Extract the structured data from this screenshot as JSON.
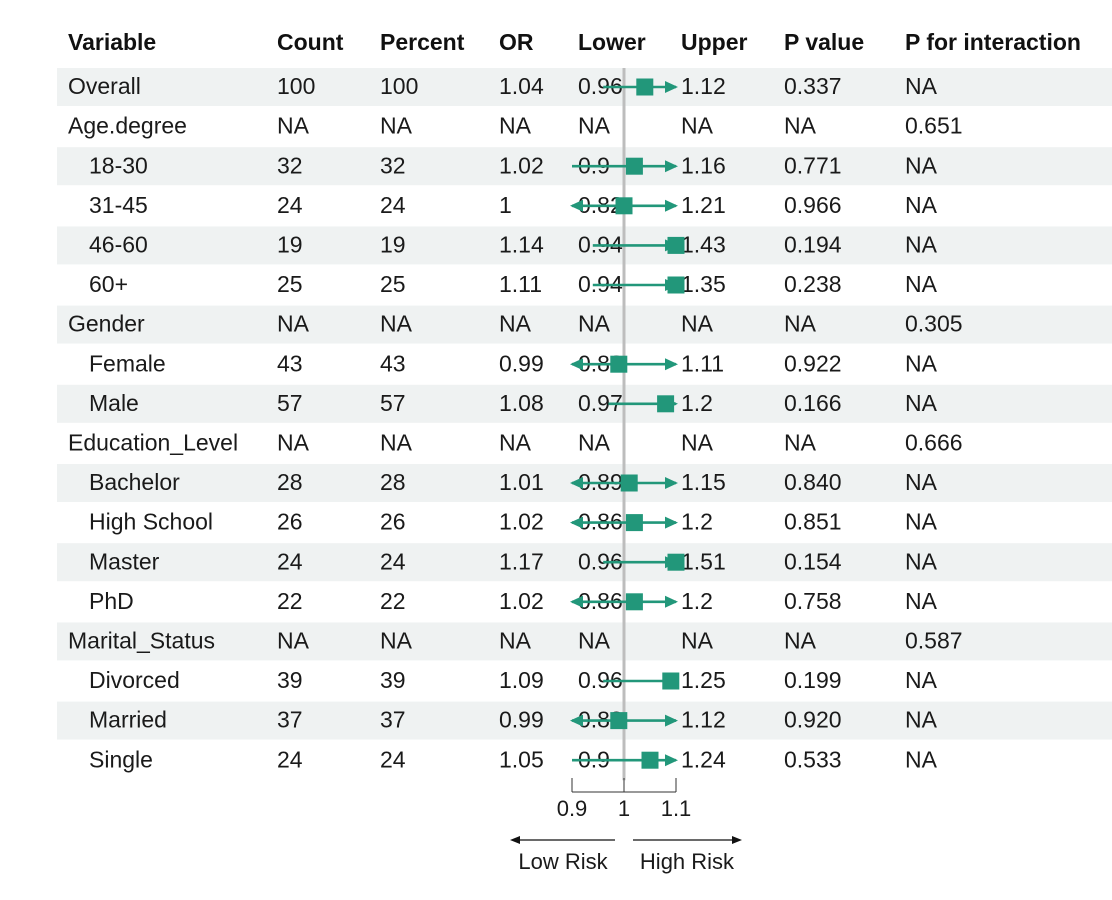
{
  "chart_data": {
    "type": "forest",
    "title": "",
    "columns": [
      "Variable",
      "Count",
      "Percent",
      "OR",
      "Lower",
      "Upper",
      "P value",
      "P for interaction"
    ],
    "rows": [
      {
        "variable": "Overall",
        "indent": false,
        "count": "100",
        "percent": "100",
        "or": "1.04",
        "lower": "0.96",
        "upper": "1.12",
        "p_value": "0.337",
        "p_interaction": "NA"
      },
      {
        "variable": "Age.degree",
        "indent": false,
        "count": "NA",
        "percent": "NA",
        "or": "NA",
        "lower": "NA",
        "upper": "NA",
        "p_value": "NA",
        "p_interaction": "0.651"
      },
      {
        "variable": "18-30",
        "indent": true,
        "count": "32",
        "percent": "32",
        "or": "1.02",
        "lower": "0.9",
        "upper": "1.16",
        "p_value": "0.771",
        "p_interaction": "NA"
      },
      {
        "variable": "31-45",
        "indent": true,
        "count": "24",
        "percent": "24",
        "or": "1",
        "lower": "0.82",
        "upper": "1.21",
        "p_value": "0.966",
        "p_interaction": "NA"
      },
      {
        "variable": "46-60",
        "indent": true,
        "count": "19",
        "percent": "19",
        "or": "1.14",
        "lower": "0.94",
        "upper": "1.43",
        "p_value": "0.194",
        "p_interaction": "NA"
      },
      {
        "variable": "60+",
        "indent": true,
        "count": "25",
        "percent": "25",
        "or": "1.11",
        "lower": "0.94",
        "upper": "1.35",
        "p_value": "0.238",
        "p_interaction": "NA"
      },
      {
        "variable": "Gender",
        "indent": false,
        "count": "NA",
        "percent": "NA",
        "or": "NA",
        "lower": "NA",
        "upper": "NA",
        "p_value": "NA",
        "p_interaction": "0.305"
      },
      {
        "variable": "Female",
        "indent": true,
        "count": "43",
        "percent": "43",
        "or": "0.99",
        "lower": "0.88",
        "upper": "1.11",
        "p_value": "0.922",
        "p_interaction": "NA"
      },
      {
        "variable": "Male",
        "indent": true,
        "count": "57",
        "percent": "57",
        "or": "1.08",
        "lower": "0.97",
        "upper": "1.2",
        "p_value": "0.166",
        "p_interaction": "NA"
      },
      {
        "variable": "Education_Level",
        "indent": false,
        "count": "NA",
        "percent": "NA",
        "or": "NA",
        "lower": "NA",
        "upper": "NA",
        "p_value": "NA",
        "p_interaction": "0.666"
      },
      {
        "variable": "Bachelor",
        "indent": true,
        "count": "28",
        "percent": "28",
        "or": "1.01",
        "lower": "0.89",
        "upper": "1.15",
        "p_value": "0.840",
        "p_interaction": "NA"
      },
      {
        "variable": "High School",
        "indent": true,
        "count": "26",
        "percent": "26",
        "or": "1.02",
        "lower": "0.86",
        "upper": "1.2",
        "p_value": "0.851",
        "p_interaction": "NA"
      },
      {
        "variable": "Master",
        "indent": true,
        "count": "24",
        "percent": "24",
        "or": "1.17",
        "lower": "0.96",
        "upper": "1.51",
        "p_value": "0.154",
        "p_interaction": "NA"
      },
      {
        "variable": "PhD",
        "indent": true,
        "count": "22",
        "percent": "22",
        "or": "1.02",
        "lower": "0.86",
        "upper": "1.2",
        "p_value": "0.758",
        "p_interaction": "NA"
      },
      {
        "variable": "Marital_Status",
        "indent": false,
        "count": "NA",
        "percent": "NA",
        "or": "NA",
        "lower": "NA",
        "upper": "NA",
        "p_value": "NA",
        "p_interaction": "0.587"
      },
      {
        "variable": "Divorced",
        "indent": true,
        "count": "39",
        "percent": "39",
        "or": "1.09",
        "lower": "0.96",
        "upper": "1.25",
        "p_value": "0.199",
        "p_interaction": "NA"
      },
      {
        "variable": "Married",
        "indent": true,
        "count": "37",
        "percent": "37",
        "or": "0.99",
        "lower": "0.88",
        "upper": "1.12",
        "p_value": "0.920",
        "p_interaction": "NA"
      },
      {
        "variable": "Single",
        "indent": true,
        "count": "24",
        "percent": "24",
        "or": "1.05",
        "lower": "0.9",
        "upper": "1.24",
        "p_value": "0.533",
        "p_interaction": "NA"
      }
    ],
    "x_axis": {
      "ticks": [
        0.9,
        1,
        1.1
      ],
      "tick_labels": [
        "0.9",
        "1",
        "1.1"
      ],
      "xlim": [
        0.9,
        1.1
      ],
      "reference_line": 1
    },
    "direction_labels": {
      "left": "Low Risk",
      "right": "High Risk"
    },
    "colors": {
      "marker": "#22977a",
      "reference_line": "#bdbdbd",
      "stripe": "#eff2f2",
      "text": "#1a1a1a"
    }
  }
}
